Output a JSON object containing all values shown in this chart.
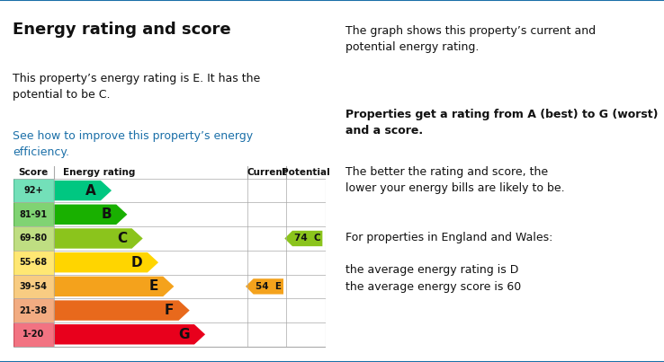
{
  "title": "Energy rating and score",
  "body_text1": "This property’s energy rating is E. It has the\npotential to be C.",
  "link_text": "See how to improve this property’s energy\nefficiency.",
  "right_text1": "The graph shows this property’s current and\npotential energy rating.",
  "right_text2_bold": "Properties get a rating from A (best) to G (worst)\nand a score.",
  "right_text2_normal": "The better the rating and score, the\nlower your energy bills are likely to be.",
  "right_text3": "For properties in England and Wales:",
  "right_text4": "the average energy rating is D\nthe average energy score is 60",
  "ratings": [
    "A",
    "B",
    "C",
    "D",
    "E",
    "F",
    "G"
  ],
  "scores": [
    "92+",
    "81-91",
    "69-80",
    "55-68",
    "39-54",
    "21-38",
    "1-20"
  ],
  "colors": [
    "#00c781",
    "#19b000",
    "#8bc41c",
    "#ffd500",
    "#f4a21c",
    "#e8691c",
    "#e8001c"
  ],
  "bar_widths": [
    1.5,
    2.0,
    2.5,
    3.0,
    3.5,
    4.0,
    4.5
  ],
  "current_score": 54,
  "current_rating": "E",
  "current_color": "#f4a21c",
  "potential_score": 74,
  "potential_rating": "C",
  "potential_color": "#8bc41c",
  "current_row_idx": 2,
  "potential_row_idx": 4,
  "top_line_color": "#1a6fa8",
  "bottom_line_color": "#1a6fa8",
  "link_color": "#1a6fa8",
  "background_color": "#ffffff"
}
